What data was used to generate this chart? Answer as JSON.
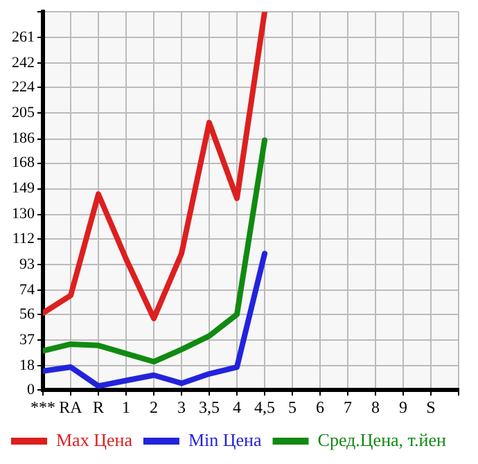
{
  "chart_data": {
    "type": "line",
    "categories": [
      "***",
      "RA",
      "R",
      "1",
      "2",
      "3",
      "3,5",
      "4",
      "4,5",
      "5",
      "6",
      "7",
      "8",
      "9",
      "S"
    ],
    "series": [
      {
        "name": "Max Цена",
        "color": "#dd1f1f",
        "values": [
          57,
          70,
          145,
          97,
          53,
          101,
          198,
          142,
          280,
          null,
          null,
          null,
          null,
          null,
          null
        ]
      },
      {
        "name": "Min Цена",
        "color": "#2323dd",
        "values": [
          14,
          17,
          3,
          7,
          11,
          5,
          12,
          17,
          101,
          null,
          null,
          null,
          null,
          null,
          null
        ]
      },
      {
        "name": "Сред.Цена, т.йен",
        "color": "#118a11",
        "values": [
          29,
          34,
          33,
          27,
          21,
          30,
          40,
          56,
          185,
          null,
          null,
          null,
          null,
          null,
          null
        ]
      }
    ],
    "ylim": [
      0,
      280
    ],
    "yticks": [
      0,
      18,
      37,
      56,
      74,
      93,
      112,
      130,
      149,
      168,
      186,
      205,
      224,
      242,
      261,
      {
        "value": 280,
        "label": null
      }
    ],
    "grid": true,
    "legend": "bottom",
    "marker": "none",
    "line_style": "solid"
  }
}
